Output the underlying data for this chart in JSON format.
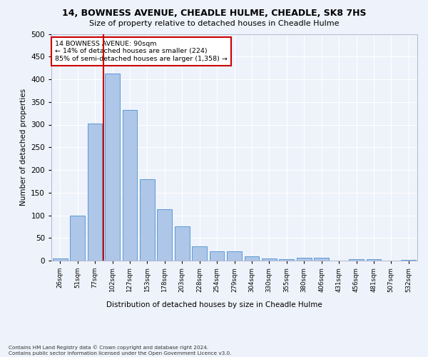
{
  "title1": "14, BOWNESS AVENUE, CHEADLE HULME, CHEADLE, SK8 7HS",
  "title2": "Size of property relative to detached houses in Cheadle Hulme",
  "xlabel": "Distribution of detached houses by size in Cheadle Hulme",
  "ylabel": "Number of detached properties",
  "categories": [
    "26sqm",
    "51sqm",
    "77sqm",
    "102sqm",
    "127sqm",
    "153sqm",
    "178sqm",
    "203sqm",
    "228sqm",
    "254sqm",
    "279sqm",
    "304sqm",
    "330sqm",
    "355sqm",
    "380sqm",
    "406sqm",
    "431sqm",
    "456sqm",
    "481sqm",
    "507sqm",
    "532sqm"
  ],
  "values": [
    5,
    100,
    302,
    413,
    333,
    180,
    113,
    76,
    31,
    20,
    20,
    10,
    5,
    3,
    6,
    6,
    0,
    3,
    3,
    0,
    2
  ],
  "bar_color": "#aec6e8",
  "bar_edge_color": "#5b9bd5",
  "vline_x": 2.5,
  "vline_color": "#cc0000",
  "annotation_text": "14 BOWNESS AVENUE: 90sqm\n← 14% of detached houses are smaller (224)\n85% of semi-detached houses are larger (1,358) →",
  "annotation_box_color": "#ffffff",
  "annotation_box_edge": "#cc0000",
  "footnote": "Contains HM Land Registry data © Crown copyright and database right 2024.\nContains public sector information licensed under the Open Government Licence v3.0.",
  "bg_color": "#eef2fa",
  "plot_bg_color": "#eef2fa",
  "ylim": [
    0,
    500
  ],
  "yticks": [
    0,
    50,
    100,
    150,
    200,
    250,
    300,
    350,
    400,
    450,
    500
  ]
}
